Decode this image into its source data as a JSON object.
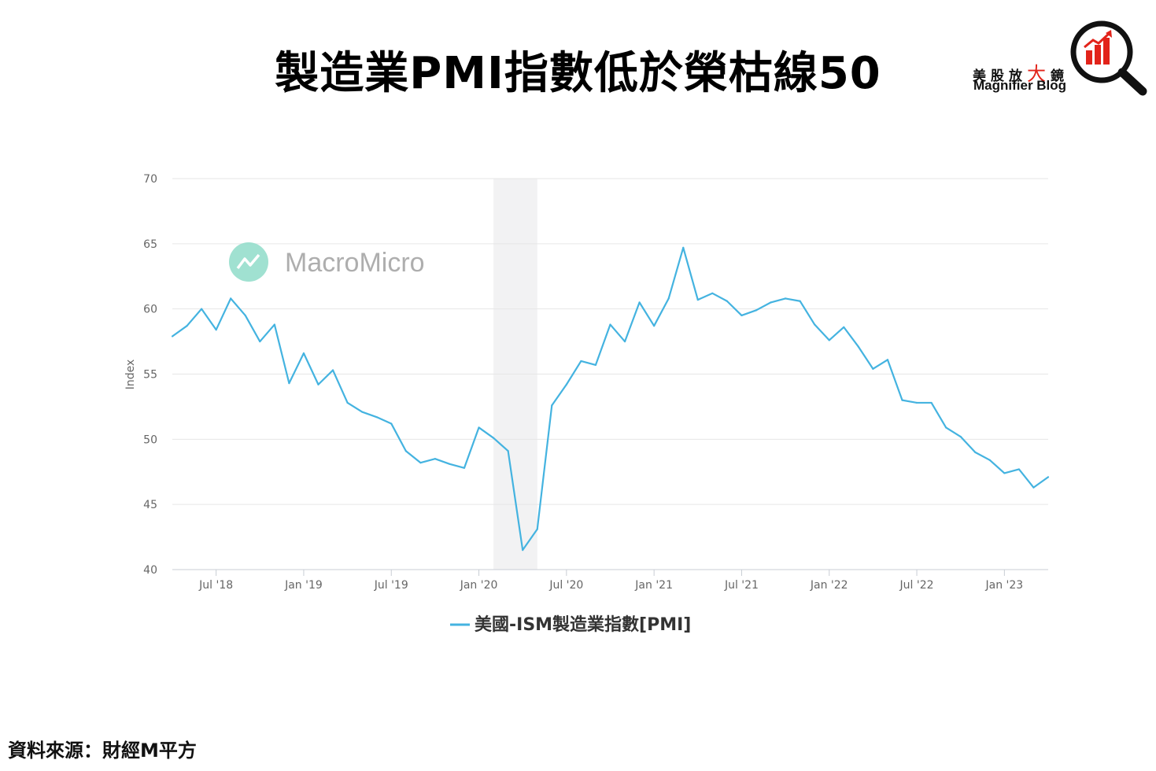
{
  "title": "製造業PMI指數低於榮枯線50",
  "logo": {
    "chinese_parts": [
      "美",
      "股",
      "放",
      "大",
      "鏡"
    ],
    "english": "Magnifier Blog",
    "accent_color": "#e2231a",
    "icon": "magnifier-bar-chart-icon"
  },
  "watermark": {
    "text": "MacroMicro",
    "icon": "macromicro-logo-icon",
    "color": "#8fdcc9"
  },
  "source": "資料來源：財經M平方",
  "chart_data": {
    "type": "line",
    "ylabel": "Index",
    "xlabel": "",
    "ylim": [
      40,
      70
    ],
    "yticks": [
      40,
      45,
      50,
      55,
      60,
      65,
      70
    ],
    "xlim": [
      "2018-04",
      "2023-04"
    ],
    "xticks": [
      {
        "label": "Jul '18",
        "date": "2018-07"
      },
      {
        "label": "Jan '19",
        "date": "2019-01"
      },
      {
        "label": "Jul '19",
        "date": "2019-07"
      },
      {
        "label": "Jan '20",
        "date": "2020-01"
      },
      {
        "label": "Jul '20",
        "date": "2020-07"
      },
      {
        "label": "Jan '21",
        "date": "2021-01"
      },
      {
        "label": "Jul '21",
        "date": "2021-07"
      },
      {
        "label": "Jan '22",
        "date": "2022-01"
      },
      {
        "label": "Jul '22",
        "date": "2022-07"
      },
      {
        "label": "Jan '23",
        "date": "2023-01"
      }
    ],
    "grid": true,
    "legend_position": "bottom-center",
    "shaded_regions": [
      {
        "start": "2020-02",
        "end": "2020-05",
        "color": "#f2f2f3"
      }
    ],
    "series": [
      {
        "name": "美國-ISM製造業指數[PMI]",
        "color": "#44b3e0",
        "x": [
          "2018-04",
          "2018-05",
          "2018-06",
          "2018-07",
          "2018-08",
          "2018-09",
          "2018-10",
          "2018-11",
          "2018-12",
          "2019-01",
          "2019-02",
          "2019-03",
          "2019-04",
          "2019-05",
          "2019-06",
          "2019-07",
          "2019-08",
          "2019-09",
          "2019-10",
          "2019-11",
          "2019-12",
          "2020-01",
          "2020-02",
          "2020-03",
          "2020-04",
          "2020-05",
          "2020-06",
          "2020-07",
          "2020-08",
          "2020-09",
          "2020-10",
          "2020-11",
          "2020-12",
          "2021-01",
          "2021-02",
          "2021-03",
          "2021-04",
          "2021-05",
          "2021-06",
          "2021-07",
          "2021-08",
          "2021-09",
          "2021-10",
          "2021-11",
          "2021-12",
          "2022-01",
          "2022-02",
          "2022-03",
          "2022-04",
          "2022-05",
          "2022-06",
          "2022-07",
          "2022-08",
          "2022-09",
          "2022-10",
          "2022-11",
          "2022-12",
          "2023-01",
          "2023-02",
          "2023-03",
          "2023-04"
        ],
        "values": [
          57.9,
          58.7,
          60.0,
          58.4,
          60.8,
          59.5,
          57.5,
          58.8,
          54.3,
          56.6,
          54.2,
          55.3,
          52.8,
          52.1,
          51.7,
          51.2,
          49.1,
          48.2,
          48.5,
          48.1,
          47.8,
          50.9,
          50.1,
          49.1,
          41.5,
          43.1,
          52.6,
          54.2,
          56.0,
          55.7,
          58.8,
          57.5,
          60.5,
          58.7,
          60.8,
          64.7,
          60.7,
          61.2,
          60.6,
          59.5,
          59.9,
          60.5,
          60.8,
          60.6,
          58.8,
          57.6,
          58.6,
          57.1,
          55.4,
          56.1,
          53.0,
          52.8,
          52.8,
          50.9,
          50.2,
          49.0,
          48.4,
          47.4,
          47.7,
          46.3,
          47.1
        ]
      }
    ]
  }
}
